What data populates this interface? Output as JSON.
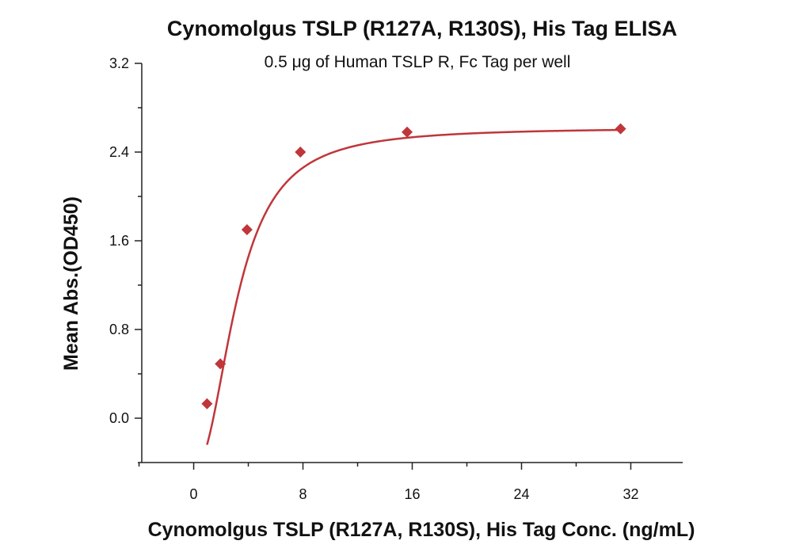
{
  "chart_data": {
    "type": "scatter",
    "title": "Cynomolgus TSLP (R127A, R130S), His Tag ELISA",
    "subtitle": "0.5 μg of Human TSLP R, Fc Tag per well",
    "xlabel": "Cynomolgus TSLP (R127A, R130S), His Tag Conc. (ng/mL)",
    "ylabel": "Mean Abs.(OD450)",
    "xlim": [
      -3.8,
      35.8
    ],
    "ylim": [
      -0.4,
      3.2
    ],
    "x_ticks": [
      0,
      8,
      16,
      24,
      32
    ],
    "x_tick_labels": [
      "0",
      "8",
      "16",
      "24",
      "32"
    ],
    "x_minor_ticks": [
      -4,
      4,
      12,
      20,
      28
    ],
    "y_ticks": [
      0.0,
      0.8,
      1.6,
      2.4,
      3.2
    ],
    "y_tick_labels": [
      "0.0",
      "0.8",
      "1.6",
      "2.4",
      "3.2"
    ],
    "y_minor_ticks": [
      -0.4,
      0.4,
      1.2,
      2.0,
      2.8
    ],
    "grid": false,
    "colors": {
      "series": "#c0363a",
      "axis": "#222222"
    },
    "series": [
      {
        "marker": "diamond",
        "x": [
          0.977,
          1.953,
          3.906,
          7.813,
          15.625,
          31.25
        ],
        "y": [
          0.13,
          0.49,
          1.7,
          2.4,
          2.58,
          2.61
        ]
      }
    ],
    "fit": {
      "type": "4PL",
      "bottom": -0.45,
      "top": 2.62,
      "ec50": 3.2,
      "hill": 2.2
    }
  }
}
